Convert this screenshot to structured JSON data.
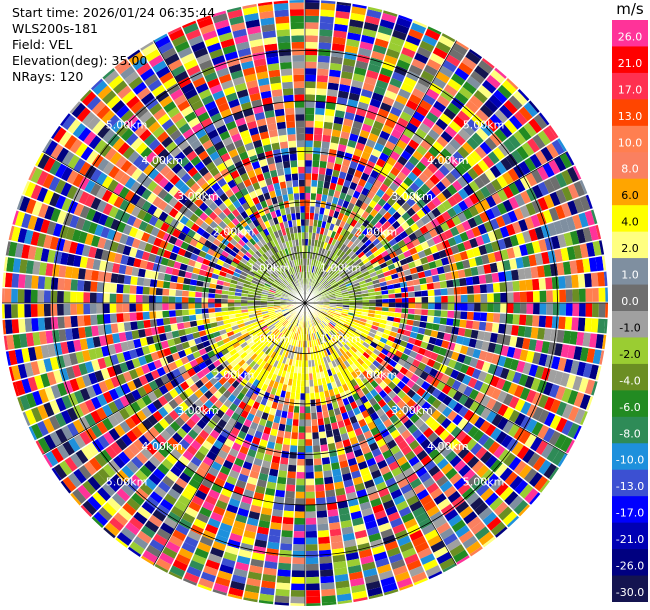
{
  "header": {
    "start_time": "Start time: 2026/01/24 06:35:44",
    "instrument": "WLS200s-181",
    "field": "Field: VEL",
    "elevation": "Elevation(deg): 35.00",
    "nrays": "NRays: 120"
  },
  "chart_data": {
    "type": "heatmap",
    "projection": "polar-ppi",
    "field": "VEL",
    "units": "m/s",
    "elevation_deg": 35.0,
    "nrays": 120,
    "range_rings_km": [
      1.0,
      2.0,
      3.0,
      4.0,
      5.0
    ],
    "ring_label_text": [
      "1.00km",
      "2.00km",
      "3.00km",
      "4.00km",
      "5.00km"
    ],
    "max_range_km": 6.0,
    "radials_deg": [
      0,
      30,
      60,
      90,
      120,
      150,
      180,
      210,
      240,
      270,
      300,
      330
    ],
    "colorbar": {
      "label": "m/s",
      "bins": [
        {
          "value": "-30.0",
          "color": "#141450"
        },
        {
          "value": "-26.0",
          "color": "#000080"
        },
        {
          "value": "-21.0",
          "color": "#0000b4"
        },
        {
          "value": "-17.0",
          "color": "#0000ff"
        },
        {
          "value": "-13.0",
          "color": "#3c50d2"
        },
        {
          "value": "-10.0",
          "color": "#1e90dc"
        },
        {
          "value": "-8.0",
          "color": "#2e8b57"
        },
        {
          "value": "-6.0",
          "color": "#228b22"
        },
        {
          "value": "-4.0",
          "color": "#6b8e23"
        },
        {
          "value": "-2.0",
          "color": "#9acd32"
        },
        {
          "value": "-1.0",
          "color": "#a0a0a0"
        },
        {
          "value": "0.0",
          "color": "#6e6e6e"
        },
        {
          "value": "1.0",
          "color": "#7f8fa0"
        },
        {
          "value": "2.0",
          "color": "#ffff80"
        },
        {
          "value": "4.0",
          "color": "#ffff00"
        },
        {
          "value": "6.0",
          "color": "#ffa500"
        },
        {
          "value": "8.0",
          "color": "#fa8060"
        },
        {
          "value": "10.0",
          "color": "#ff7f50"
        },
        {
          "value": "13.0",
          "color": "#ff4500"
        },
        {
          "value": "17.0",
          "color": "#ff3050"
        },
        {
          "value": "21.0",
          "color": "#ff0000"
        },
        {
          "value": "26.0",
          "color": "#ff3399"
        }
      ]
    },
    "range_gate_regimes": [
      {
        "range_km": [
          0.0,
          1.5
        ],
        "sector": "north",
        "dominant_values": [
          "-2.0",
          "-4.0",
          "-1.0"
        ]
      },
      {
        "range_km": [
          0.0,
          1.8
        ],
        "sector": "south",
        "dominant_values": [
          "4.0",
          "2.0",
          "6.0"
        ]
      },
      {
        "range_km": [
          1.5,
          6.0
        ],
        "sector": "all",
        "dominant_values": [
          "noise"
        ]
      }
    ]
  }
}
